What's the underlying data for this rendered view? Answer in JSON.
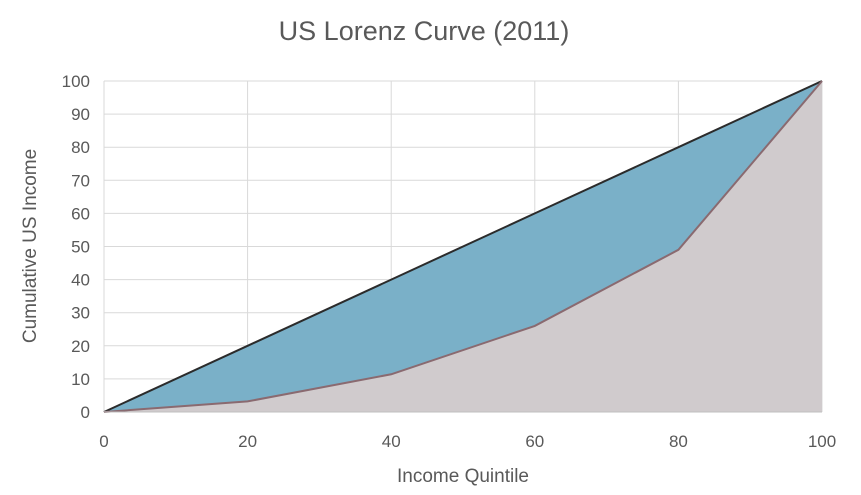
{
  "chart_data": {
    "type": "area",
    "title": "US Lorenz Curve (2011)",
    "xlabel": "Income Quintile",
    "ylabel": "Cumulative US Income",
    "xlim": [
      0,
      100
    ],
    "ylim": [
      0,
      100
    ],
    "x_ticks": [
      "0",
      "20",
      "40",
      "60",
      "80",
      "100"
    ],
    "y_ticks": [
      "0",
      "10",
      "20",
      "30",
      "40",
      "50",
      "60",
      "70",
      "80",
      "90",
      "100"
    ],
    "grid": true,
    "legend": "none",
    "x": [
      0,
      20,
      40,
      60,
      80,
      100
    ],
    "series": [
      {
        "values": [
          0,
          20,
          40,
          60,
          80,
          100
        ],
        "color": "#7ab0c8",
        "line_color": "#2b2b2b"
      },
      {
        "values": [
          0,
          3.2,
          11.4,
          26,
          49,
          100
        ],
        "color": "#d0cbcd",
        "line_color": "#8a6a70"
      }
    ]
  }
}
